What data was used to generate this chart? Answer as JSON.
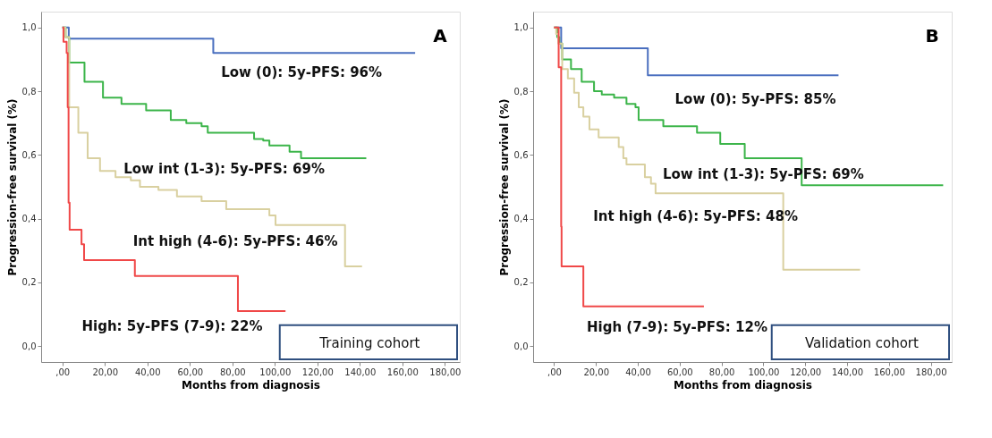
{
  "chart_data": [
    {
      "type": "step",
      "title": "A",
      "xlabel": "Months from diagnosis",
      "ylabel": "Progression-free survival (%)",
      "xlim": [
        -10,
        187
      ],
      "ylim": [
        -0.05,
        1.05
      ],
      "xticks": [
        {
          "value": 0,
          "label": ",00"
        },
        {
          "value": 20,
          "label": "20,00"
        },
        {
          "value": 40,
          "label": "40,00"
        },
        {
          "value": 60,
          "label": "60,00"
        },
        {
          "value": 80,
          "label": "80,00"
        },
        {
          "value": 100,
          "label": "100,00"
        },
        {
          "value": 120,
          "label": "120,00"
        },
        {
          "value": 140,
          "label": "140,00"
        },
        {
          "value": 160,
          "label": "160,00"
        },
        {
          "value": 180,
          "label": "180,00"
        }
      ],
      "yticks": [
        {
          "value": 0,
          "label": "0,0"
        },
        {
          "value": 0.2,
          "label": "0,2"
        },
        {
          "value": 0.4,
          "label": "0,4"
        },
        {
          "value": 0.6,
          "label": "0,6"
        },
        {
          "value": 0.8,
          "label": "0,8"
        },
        {
          "value": 1,
          "label": "1,0"
        }
      ],
      "series": [
        {
          "name": "Low (0): 5y-PFS: 96%",
          "color": "#4a6fbf",
          "x": [
            0,
            3,
            71,
            166
          ],
          "values": [
            1.0,
            0.965,
            0.92,
            0.92
          ]
        },
        {
          "name": "Low int (1-3): 5y-PFS: 69%",
          "color": "#3cb54a",
          "x": [
            0,
            1.5,
            3.2,
            10.4,
            19.1,
            27.8,
            39.4,
            51,
            58.3,
            65.5,
            68.4,
            85.8,
            90.2,
            94.5,
            97.4,
            105.4,
            106.9,
            112,
            112.3,
            143
          ],
          "values": [
            1.0,
            0.97,
            0.89,
            0.83,
            0.78,
            0.76,
            0.74,
            0.71,
            0.7,
            0.69,
            0.67,
            0.67,
            0.65,
            0.645,
            0.63,
            0.63,
            0.61,
            0.61,
            0.59,
            0.59
          ]
        },
        {
          "name": "Int high (4-6): 5y-PFS: 46%",
          "color": "#d9d0a0",
          "x": [
            0,
            1.5,
            3.2,
            7.5,
            11.9,
            17.7,
            25,
            32.2,
            36.5,
            45.2,
            53.9,
            65.5,
            77.1,
            96.7,
            97.4,
            100.3,
            133,
            141
          ],
          "values": [
            1.0,
            0.97,
            0.75,
            0.67,
            0.59,
            0.55,
            0.53,
            0.52,
            0.5,
            0.49,
            0.47,
            0.455,
            0.43,
            0.43,
            0.41,
            0.38,
            0.25,
            0.25
          ]
        },
        {
          "name": "High: 5y-PFS (7-9): 22%",
          "color": "#f04848",
          "x": [
            0,
            0.5,
            2,
            2.5,
            2.9,
            3.4,
            9,
            10.2,
            34.1,
            82.6,
            105
          ],
          "values": [
            1.0,
            0.955,
            0.92,
            0.75,
            0.45,
            0.365,
            0.32,
            0.27,
            0.22,
            0.11,
            0.11
          ]
        }
      ],
      "annotations": [
        "Training cohort"
      ]
    },
    {
      "type": "step",
      "title": "B",
      "xlabel": "Months from diagnosis",
      "ylabel": "Progression-free survival (%)",
      "xlim": [
        -10,
        190
      ],
      "ylim": [
        -0.05,
        1.05
      ],
      "xticks": [
        {
          "value": 0,
          "label": ",00"
        },
        {
          "value": 20,
          "label": "20,00"
        },
        {
          "value": 40,
          "label": "40,00"
        },
        {
          "value": 60,
          "label": "60,00"
        },
        {
          "value": 80,
          "label": "80,00"
        },
        {
          "value": 100,
          "label": "100,00"
        },
        {
          "value": 120,
          "label": "120,00"
        },
        {
          "value": 140,
          "label": "140,00"
        },
        {
          "value": 160,
          "label": "160,00"
        },
        {
          "value": 180,
          "label": "180,00"
        }
      ],
      "yticks": [
        {
          "value": 0,
          "label": "0,0"
        },
        {
          "value": 0.2,
          "label": "0,2"
        },
        {
          "value": 0.4,
          "label": "0,4"
        },
        {
          "value": 0.6,
          "label": "0,6"
        },
        {
          "value": 0.8,
          "label": "0,8"
        },
        {
          "value": 1,
          "label": "1,0"
        }
      ],
      "series": [
        {
          "name": "Low (0): 5y-PFS: 85%",
          "color": "#4a6fbf",
          "x": [
            0,
            3.4,
            44.8,
            135.9
          ],
          "values": [
            1.0,
            0.935,
            0.85,
            0.85
          ]
        },
        {
          "name": "Low int (1-3): 5y-PFS: 69%",
          "color": "#3cb54a",
          "x": [
            0,
            1.5,
            2.5,
            3.9,
            8.1,
            13.2,
            19.1,
            22.8,
            28.7,
            34.6,
            38.9,
            40.4,
            52.2,
            68.3,
            79.4,
            91.1,
            118.3,
            185.9
          ],
          "values": [
            1.0,
            0.97,
            0.95,
            0.9,
            0.87,
            0.83,
            0.8,
            0.79,
            0.78,
            0.76,
            0.75,
            0.71,
            0.69,
            0.67,
            0.635,
            0.59,
            0.505,
            0.505
          ]
        },
        {
          "name": "Int high (4-6): 5y-PFS: 48%",
          "color": "#d9d0a0",
          "x": [
            0,
            1,
            2,
            3.9,
            6.6,
            9.6,
            11.8,
            14,
            16.9,
            21.3,
            30.9,
            33.1,
            34.6,
            43.4,
            46.3,
            48.5,
            109.5,
            146.2
          ],
          "values": [
            1.0,
            0.98,
            0.95,
            0.87,
            0.84,
            0.795,
            0.75,
            0.72,
            0.68,
            0.655,
            0.625,
            0.59,
            0.57,
            0.53,
            0.51,
            0.48,
            0.24,
            0.24
          ]
        },
        {
          "name": "High (7-9): 5y-PFS: 12%",
          "color": "#f04848",
          "x": [
            0,
            2.2,
            3.4,
            3.6,
            14,
            71.6
          ],
          "values": [
            1.0,
            0.875,
            0.375,
            0.25,
            0.125,
            0.125
          ]
        }
      ],
      "annotations": [
        "Validation cohort"
      ]
    }
  ]
}
